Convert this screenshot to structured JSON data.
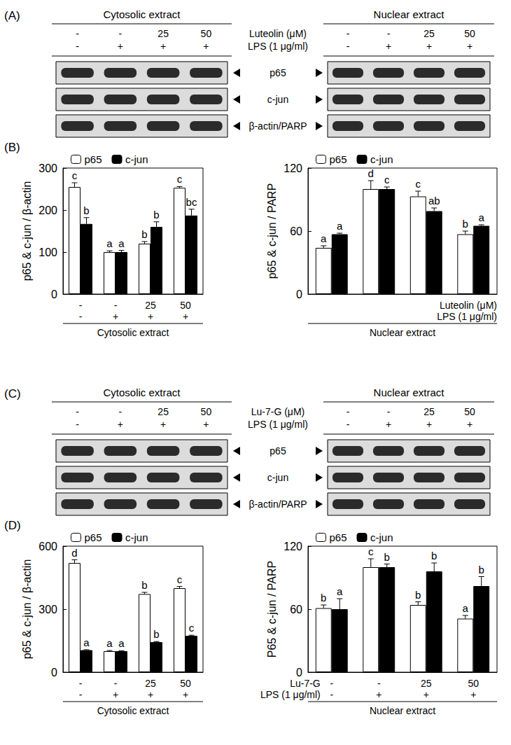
{
  "blots": [
    {
      "panel": "(A)",
      "sections": [
        "Cytosolic extract",
        "Nuclear extract"
      ],
      "treatments": [
        {
          "label": "Luteolin (μM)",
          "values": [
            "-",
            "-",
            "25",
            "50"
          ]
        },
        {
          "label": "LPS (1 μg/ml)",
          "values": [
            "-",
            "+",
            "+",
            "+"
          ]
        }
      ],
      "bands": [
        "p65",
        "c-jun",
        "β-actin/PARP"
      ]
    },
    {
      "panel": "(C)",
      "sections": [
        "Cytosolic extract",
        "Nuclear extract"
      ],
      "treatments": [
        {
          "label": "Lu-7-G (μM)",
          "values": [
            "-",
            "-",
            "25",
            "50"
          ]
        },
        {
          "label": "LPS (1 μg/ml)",
          "values": [
            "-",
            "+",
            "+",
            "+"
          ]
        }
      ],
      "bands": [
        "p65",
        "c-jun",
        "β-actin/PARP"
      ]
    }
  ],
  "chart_data": [
    {
      "type": "bar",
      "title": "(B)",
      "ylabel": "p65 & c-jun / β-actin",
      "xlabel": "Cytosolic extract",
      "categories": [
        null,
        null,
        null,
        null
      ],
      "ylim": [
        0,
        300
      ],
      "yticks": [
        0,
        100,
        200,
        300
      ],
      "grid": false,
      "legend": "top-left",
      "series": [
        {
          "name": "p65",
          "color": "#ffffff",
          "values": [
            255,
            100,
            120,
            253
          ],
          "errors": [
            10,
            3,
            5,
            3
          ],
          "letters": [
            "c",
            "a",
            "b",
            "c"
          ]
        },
        {
          "name": "c-jun",
          "color": "#000000",
          "values": [
            167,
            100,
            160,
            187
          ],
          "errors": [
            15,
            4,
            12,
            15
          ],
          "letters": [
            "b",
            "a",
            "b",
            "bc"
          ]
        }
      ],
      "treatments": [
        {
          "values": [
            "-",
            "-",
            "25",
            "50"
          ]
        },
        {
          "values": [
            "-",
            "+",
            "+",
            "+"
          ]
        }
      ]
    },
    {
      "type": "bar",
      "ylabel": "p65 & c-jun / PARP",
      "xlabel": "Nuclear extract",
      "categories": [
        null,
        null,
        null,
        null
      ],
      "ylim": [
        0,
        120
      ],
      "yticks": [
        0,
        60,
        120
      ],
      "grid": false,
      "legend": "top-left",
      "series": [
        {
          "name": "p65",
          "color": "#ffffff",
          "values": [
            44,
            100,
            93,
            57
          ],
          "errors": [
            2,
            8,
            5,
            3
          ],
          "letters": [
            "a",
            "d",
            "c",
            "b"
          ]
        },
        {
          "name": "c-jun",
          "color": "#000000",
          "values": [
            57,
            100,
            79,
            65
          ],
          "errors": [
            1,
            2,
            3,
            1
          ],
          "letters": [
            "a",
            "c",
            "ab",
            "a"
          ]
        }
      ],
      "treatments": [
        {
          "label": "Luteolin (μM)"
        },
        {
          "label": "LPS (1 μg/ml)"
        }
      ]
    },
    {
      "type": "bar",
      "title": "(D)",
      "ylabel": "p65 & c-jun / β-actin",
      "xlabel": "Cytosolic extract",
      "categories": [
        null,
        null,
        null,
        null
      ],
      "ylim": [
        0,
        600
      ],
      "yticks": [
        0,
        300,
        600
      ],
      "grid": false,
      "legend": "top-left",
      "series": [
        {
          "name": "p65",
          "color": "#ffffff",
          "values": [
            520,
            100,
            372,
            400
          ],
          "errors": [
            15,
            3,
            8,
            8
          ],
          "letters": [
            "d",
            "a",
            "b",
            "c"
          ]
        },
        {
          "name": "c-jun",
          "color": "#000000",
          "values": [
            105,
            100,
            143,
            173
          ],
          "errors": [
            2,
            2,
            3,
            3
          ],
          "letters": [
            "a",
            "a",
            "b",
            "c"
          ]
        }
      ],
      "treatments": [
        {
          "values": [
            "-",
            "-",
            "25",
            "50"
          ]
        },
        {
          "values": [
            "-",
            "+",
            "+",
            "+"
          ]
        }
      ]
    },
    {
      "type": "bar",
      "ylabel": "P65 & c-jun / PARP",
      "xlabel": "Nuclear extract",
      "categories": [
        null,
        null,
        null,
        null
      ],
      "ylim": [
        0,
        120
      ],
      "yticks": [
        0,
        60,
        120
      ],
      "grid": false,
      "legend": "top-left",
      "series": [
        {
          "name": "p65",
          "color": "#ffffff",
          "values": [
            61,
            100,
            64,
            51
          ],
          "errors": [
            3,
            8,
            3,
            3
          ],
          "letters": [
            "b",
            "c",
            "b",
            "a"
          ]
        },
        {
          "name": "c-jun",
          "color": "#000000",
          "values": [
            60,
            100,
            96,
            82
          ],
          "errors": [
            10,
            3,
            8,
            9
          ],
          "letters": [
            "a",
            "b",
            "b",
            "b"
          ]
        }
      ],
      "treatments": [
        {
          "label": "Lu-7-G",
          "values": [
            "-",
            "-",
            "25",
            "50"
          ]
        },
        {
          "label": "LPS (1 μg/ml)",
          "values": [
            "-",
            "+",
            "+",
            "+"
          ]
        }
      ]
    }
  ]
}
